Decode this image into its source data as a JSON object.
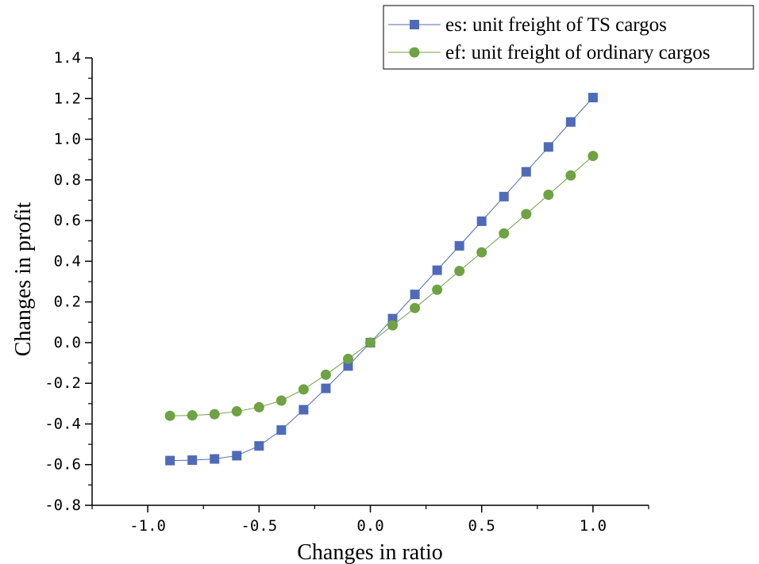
{
  "chart_data": {
    "type": "line",
    "xlabel": "Changes in ratio",
    "ylabel": "Changes in profit",
    "xlim": [
      -1.25,
      1.25
    ],
    "ylim": [
      -0.8,
      1.4
    ],
    "x_ticks": [
      -1.0,
      -0.5,
      0.0,
      0.5,
      1.0
    ],
    "x_tick_labels": [
      "-1.0",
      "-0.5",
      "0.0",
      "0.5",
      "1.0"
    ],
    "y_ticks": [
      -0.8,
      -0.6,
      -0.4,
      -0.2,
      0.0,
      0.2,
      0.4,
      0.6,
      0.8,
      1.0,
      1.2,
      1.4
    ],
    "y_tick_labels": [
      "-0.8",
      "-0.6",
      "-0.4",
      "-0.2",
      "0.0",
      "0.2",
      "0.4",
      "0.6",
      "0.8",
      "1.0",
      "1.2",
      "1.4"
    ],
    "grid": false,
    "legend_position": "top-right",
    "x": [
      -0.9,
      -0.8,
      -0.7,
      -0.6,
      -0.5,
      -0.4,
      -0.3,
      -0.2,
      -0.1,
      0.0,
      0.1,
      0.2,
      0.3,
      0.4,
      0.5,
      0.6,
      0.7,
      0.8,
      0.9,
      1.0
    ],
    "series": [
      {
        "name": "es: unit freight of TS cargos",
        "marker": "square",
        "color": "#4f6bb8",
        "values": [
          -0.58,
          -0.578,
          -0.572,
          -0.556,
          -0.508,
          -0.43,
          -0.33,
          -0.225,
          -0.115,
          0.0,
          0.118,
          0.237,
          0.356,
          0.476,
          0.597,
          0.718,
          0.84,
          0.962,
          1.085,
          1.205
        ]
      },
      {
        "name": "ef: unit freight of ordinary cargos",
        "marker": "circle",
        "color": "#6ea243",
        "values": [
          -0.36,
          -0.358,
          -0.352,
          -0.338,
          -0.318,
          -0.285,
          -0.23,
          -0.158,
          -0.08,
          0.0,
          0.085,
          0.17,
          0.26,
          0.352,
          0.444,
          0.537,
          0.632,
          0.727,
          0.822,
          0.918
        ]
      }
    ]
  }
}
